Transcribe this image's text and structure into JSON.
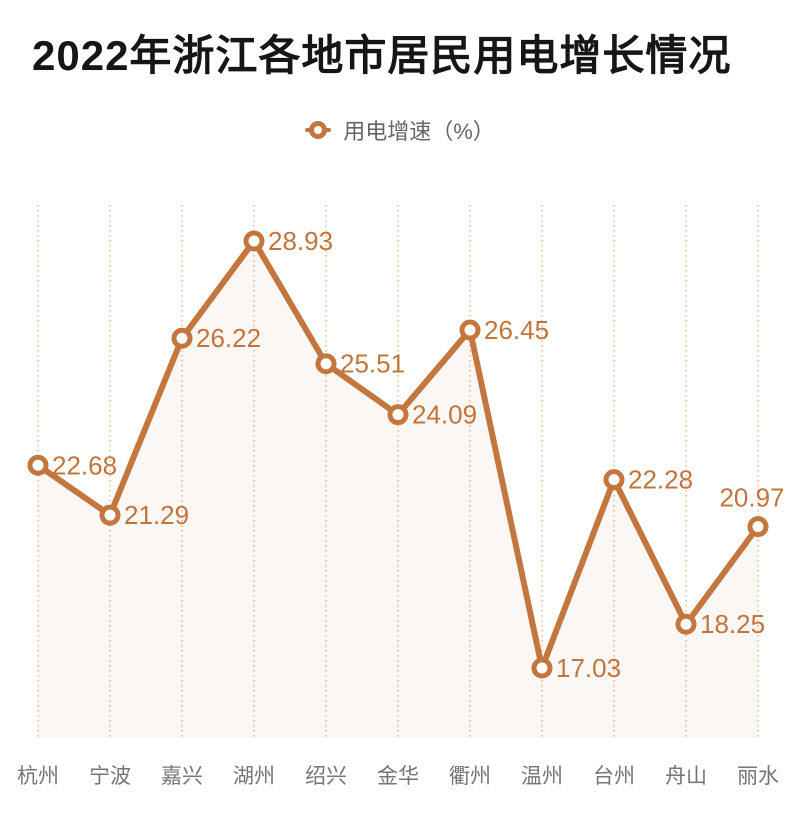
{
  "title": "2022年浙江各地市居民用电增长情况",
  "legend": {
    "label": "用电增速（%）"
  },
  "colors": {
    "accent": "#C3763D",
    "line": "#C3763D",
    "point_fill": "#FFFFFF",
    "data_label": "#C2743C",
    "grid": "#EFB183",
    "area": "rgba(195,118,61,0.06)",
    "axis_label": "#757575",
    "legend_text": "#666666",
    "title_text": "#161616",
    "background": "#FFFFFF"
  },
  "chart_data": {
    "type": "line",
    "title": "2022年浙江各地市居民用电增长情况",
    "categories": [
      "杭州",
      "宁波",
      "嘉兴",
      "湖州",
      "绍兴",
      "金华",
      "衢州",
      "温州",
      "台州",
      "舟山",
      "丽水"
    ],
    "series": [
      {
        "name": "用电增速（%）",
        "values": [
          22.68,
          21.29,
          26.22,
          28.93,
          25.51,
          24.09,
          26.45,
          17.03,
          22.28,
          18.25,
          20.97
        ]
      }
    ],
    "point_labels_shown": true,
    "label_positions": [
      "right",
      "right",
      "right",
      "right",
      "right",
      "right",
      "right",
      "right",
      "right",
      "right",
      "top"
    ],
    "xlabel": "",
    "ylabel": "",
    "ylim": [
      15,
      30
    ],
    "grid": "vertical-dotted",
    "legend_position": "top-center",
    "markers": "hollow-circle",
    "area_fill": true
  }
}
